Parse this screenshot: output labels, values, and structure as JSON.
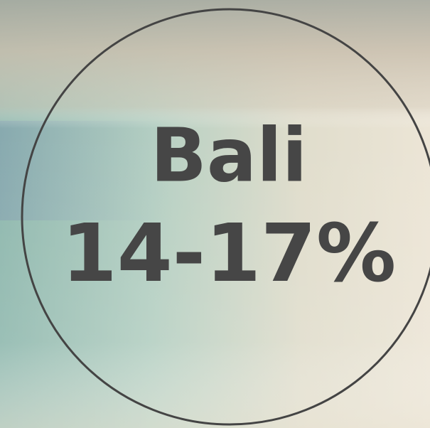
{
  "title": "Bali",
  "subtitle": "14-17%"
}
